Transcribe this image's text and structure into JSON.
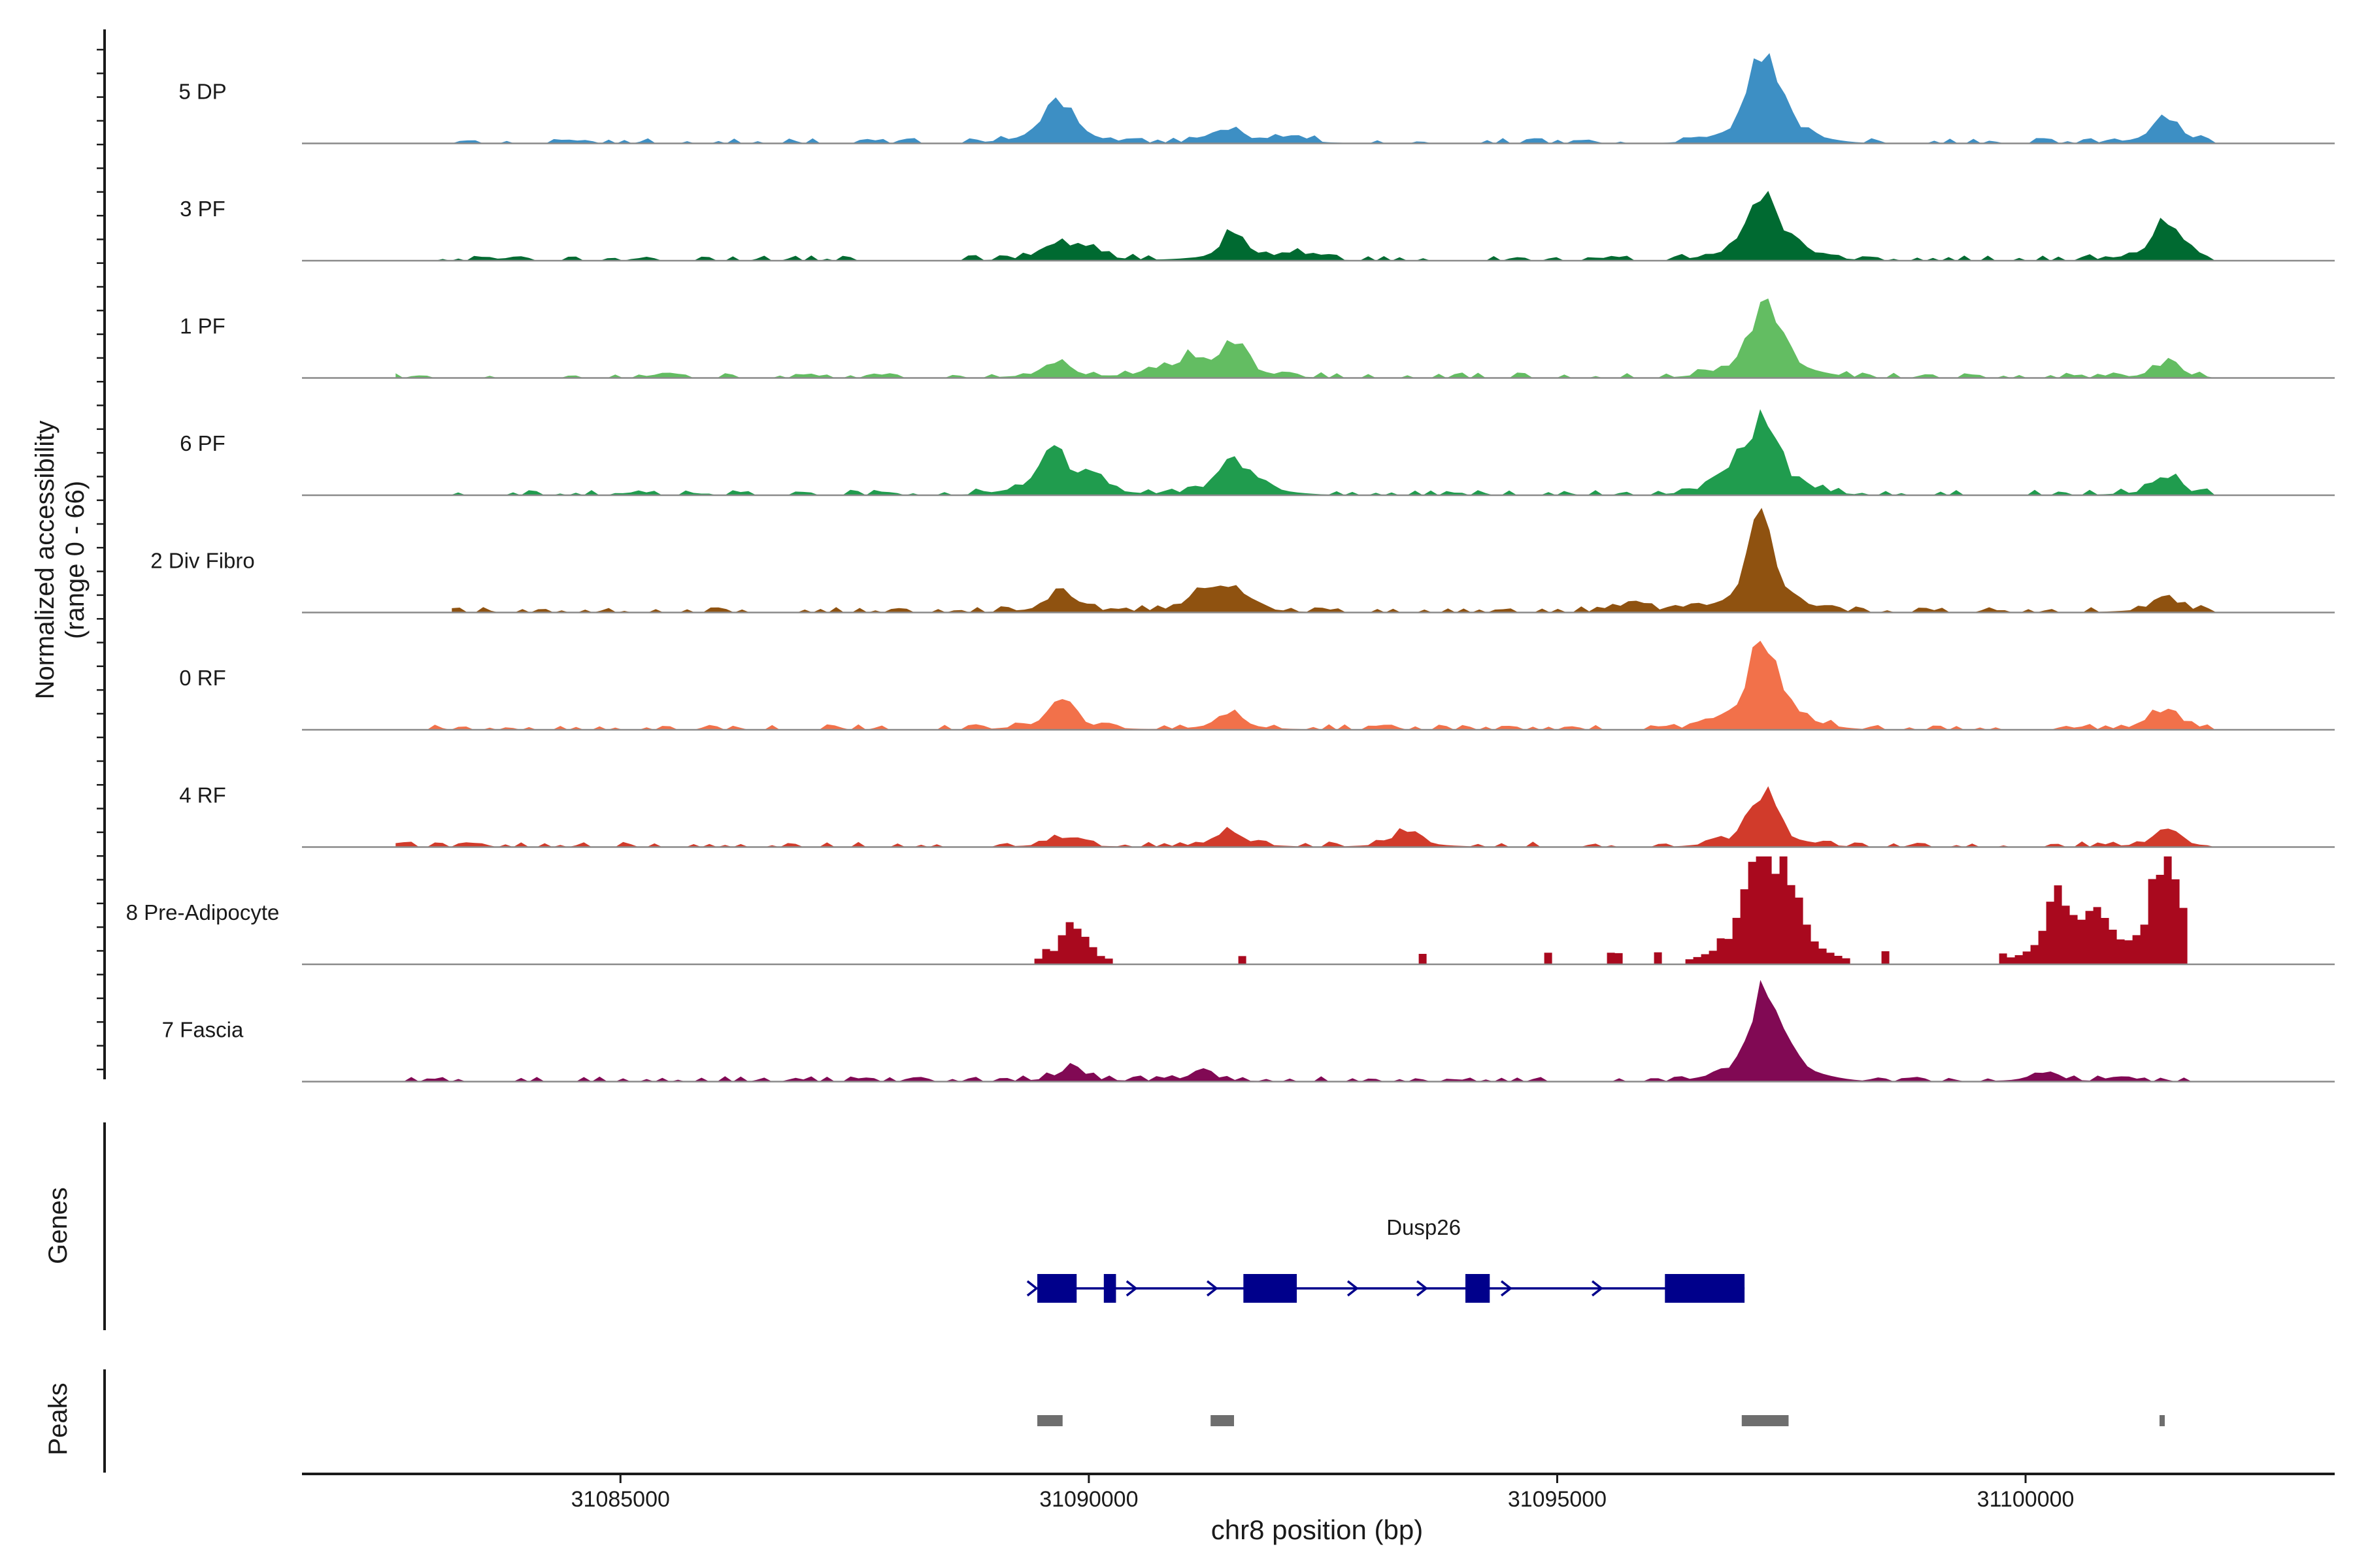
{
  "chart_data": {
    "type": "area",
    "title": "",
    "ylabel_line1": "Normalized accessibility",
    "ylabel_line2": "(range 0 - 66)",
    "y_range": [
      0,
      66
    ],
    "xlabel": "chr8 position (bp)",
    "xlim": [
      31081600,
      31103300
    ],
    "x_ticks": [
      {
        "value": 31085000,
        "label": "31085000"
      },
      {
        "value": 31090000,
        "label": "31090000"
      },
      {
        "value": 31095000,
        "label": "31095000"
      },
      {
        "value": 31100000,
        "label": "31100000"
      }
    ],
    "tracks_label": "",
    "genes_label": "Genes",
    "peaks_label": "Peaks",
    "series": [
      {
        "name": "5 DP",
        "color": "#3d8fc4",
        "start": 31083200,
        "end": 31102000,
        "peaks": [
          [
            31089600,
            0.24
          ],
          [
            31089800,
            0.12
          ],
          [
            31091500,
            0.12
          ],
          [
            31092200,
            0.05
          ],
          [
            31097170,
            0.55
          ],
          [
            31097350,
            0.2
          ],
          [
            31101500,
            0.2
          ]
        ]
      },
      {
        "name": "3 PF",
        "color": "#006a31",
        "start": 31082600,
        "end": 31102000,
        "peaks": [
          [
            31089650,
            0.14
          ],
          [
            31090000,
            0.08
          ],
          [
            31091550,
            0.2
          ],
          [
            31092200,
            0.06
          ],
          [
            31097170,
            0.52
          ],
          [
            31097500,
            0.1
          ],
          [
            31101500,
            0.32
          ]
        ]
      },
      {
        "name": "1 PF",
        "color": "#63bd62",
        "start": 31082600,
        "end": 31102000,
        "peaks": [
          [
            31089650,
            0.13
          ],
          [
            31090700,
            0.06
          ],
          [
            31091100,
            0.14
          ],
          [
            31091550,
            0.24
          ],
          [
            31097170,
            0.44
          ],
          [
            31097350,
            0.22
          ],
          [
            31101500,
            0.1
          ]
        ]
      },
      {
        "name": "6 PF",
        "color": "#209c4e",
        "start": 31083100,
        "end": 31102000,
        "peaks": [
          [
            31089600,
            0.38
          ],
          [
            31090000,
            0.12
          ],
          [
            31091500,
            0.22
          ],
          [
            31091800,
            0.1
          ],
          [
            31097220,
            0.62
          ],
          [
            31096900,
            0.16
          ],
          [
            31101500,
            0.14
          ]
        ]
      },
      {
        "name": "2 Div Fibro",
        "color": "#8f5210",
        "start": 31083200,
        "end": 31102000,
        "peaks": [
          [
            31089700,
            0.16
          ],
          [
            31091200,
            0.14
          ],
          [
            31091500,
            0.18
          ],
          [
            31097170,
            0.72
          ],
          [
            31095800,
            0.08
          ],
          [
            31101500,
            0.12
          ]
        ]
      },
      {
        "name": "0 RF",
        "color": "#f2714a",
        "start": 31082600,
        "end": 31102000,
        "peaks": [
          [
            31089700,
            0.24
          ],
          [
            31091500,
            0.14
          ],
          [
            31097170,
            0.62
          ],
          [
            31097400,
            0.14
          ],
          [
            31101500,
            0.16
          ]
        ]
      },
      {
        "name": "4 RF",
        "color": "#d13b2b",
        "start": 31082600,
        "end": 31102000,
        "peaks": [
          [
            31089700,
            0.08
          ],
          [
            31091500,
            0.14
          ],
          [
            31093400,
            0.12
          ],
          [
            31097200,
            0.42
          ],
          [
            31101500,
            0.12
          ]
        ]
      },
      {
        "name": "8 Pre-Adipocyte",
        "color": "#a9091e",
        "start": 31089000,
        "end": 31101700,
        "peaks": [
          [
            31089800,
            0.3
          ],
          [
            31097100,
            0.82
          ],
          [
            31097400,
            0.58
          ],
          [
            31100300,
            0.48
          ],
          [
            31100700,
            0.32
          ],
          [
            31101450,
            0.85
          ]
        ]
      },
      {
        "name": "7 Fascia",
        "color": "#810954",
        "start": 31082600,
        "end": 31102000,
        "peaks": [
          [
            31089800,
            0.1
          ],
          [
            31091200,
            0.08
          ],
          [
            31097200,
            0.6
          ],
          [
            31097400,
            0.2
          ],
          [
            31100200,
            0.08
          ]
        ]
      }
    ],
    "gene": {
      "name": "Dusp26",
      "strand": "+",
      "start": 31089450,
      "end": 31097000,
      "exons": [
        [
          31089450,
          31089870
        ],
        [
          31090160,
          31090290
        ],
        [
          31091650,
          31092220
        ],
        [
          31094020,
          31094280
        ],
        [
          31096150,
          31097000
        ]
      ],
      "arrows": [
        31089400,
        31090460,
        31091320,
        31092820,
        31093560,
        31094460,
        31095430
      ],
      "color": "#00008b"
    },
    "peak_regions": [
      [
        31089450,
        31089720
      ],
      [
        31091300,
        31091550
      ],
      [
        31096970,
        31097470
      ],
      [
        31101430,
        31101480
      ]
    ],
    "peak_color": "#6e6e6e"
  }
}
